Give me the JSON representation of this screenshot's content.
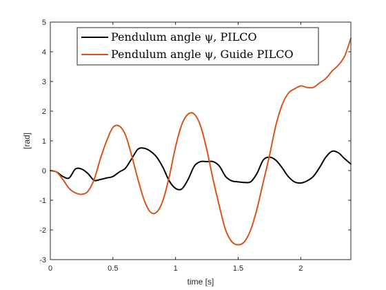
{
  "chart_data": {
    "type": "line",
    "title": "",
    "xlabel": "time [s]",
    "ylabel": "[rad]",
    "xlim": [
      0,
      2.4
    ],
    "ylim": [
      -3,
      5
    ],
    "xticks": [
      0,
      0.5,
      1,
      1.5,
      2
    ],
    "xtick_labels": [
      "0",
      "0.5",
      "1",
      "1.5",
      "2"
    ],
    "yticks": [
      -3,
      -2,
      -1,
      0,
      1,
      2,
      3,
      4,
      5
    ],
    "ytick_labels": [
      "-3",
      "-2",
      "-1",
      "0",
      "1",
      "2",
      "3",
      "4",
      "5"
    ],
    "grid": false,
    "legend_position": "top",
    "series": [
      {
        "name": "Pendulum angle ψ, PILCO",
        "color": "#000000",
        "x": [
          0,
          0.05,
          0.1,
          0.15,
          0.2,
          0.25,
          0.3,
          0.35,
          0.4,
          0.45,
          0.5,
          0.55,
          0.6,
          0.65,
          0.7,
          0.75,
          0.8,
          0.85,
          0.9,
          0.95,
          1.0,
          1.05,
          1.1,
          1.15,
          1.2,
          1.25,
          1.3,
          1.35,
          1.4,
          1.45,
          1.5,
          1.55,
          1.6,
          1.65,
          1.7,
          1.75,
          1.8,
          1.85,
          1.9,
          1.95,
          2.0,
          2.05,
          2.1,
          2.15,
          2.2,
          2.25,
          2.3,
          2.35,
          2.4
        ],
        "y": [
          0,
          -0.05,
          -0.2,
          -0.25,
          0.05,
          0.05,
          -0.1,
          -0.33,
          -0.3,
          -0.25,
          -0.2,
          -0.05,
          0.08,
          0.4,
          0.72,
          0.75,
          0.65,
          0.45,
          0.1,
          -0.35,
          -0.6,
          -0.62,
          -0.3,
          0.15,
          0.3,
          0.3,
          0.3,
          0.15,
          -0.2,
          -0.35,
          -0.38,
          -0.4,
          -0.38,
          -0.1,
          0.35,
          0.45,
          0.35,
          0.1,
          -0.2,
          -0.38,
          -0.42,
          -0.35,
          -0.2,
          0.1,
          0.45,
          0.65,
          0.6,
          0.4,
          0.22
        ]
      },
      {
        "name": "Pendulum angle ψ, Guide PILCO",
        "color": "#D95319",
        "x": [
          0,
          0.05,
          0.1,
          0.15,
          0.2,
          0.25,
          0.3,
          0.35,
          0.4,
          0.45,
          0.5,
          0.55,
          0.6,
          0.65,
          0.7,
          0.75,
          0.8,
          0.85,
          0.9,
          0.95,
          1.0,
          1.05,
          1.1,
          1.15,
          1.2,
          1.25,
          1.3,
          1.35,
          1.4,
          1.45,
          1.5,
          1.55,
          1.6,
          1.65,
          1.7,
          1.75,
          1.8,
          1.85,
          1.9,
          1.95,
          2.0,
          2.05,
          2.1,
          2.15,
          2.2,
          2.25,
          2.3,
          2.35,
          2.4
        ],
        "y": [
          0,
          -0.05,
          -0.3,
          -0.6,
          -0.75,
          -0.8,
          -0.7,
          -0.3,
          0.4,
          1.0,
          1.45,
          1.5,
          1.2,
          0.5,
          -0.3,
          -1.0,
          -1.4,
          -1.4,
          -1.0,
          -0.2,
          0.8,
          1.55,
          1.9,
          1.9,
          1.5,
          0.7,
          -0.3,
          -1.2,
          -2.0,
          -2.4,
          -2.5,
          -2.4,
          -2.0,
          -1.3,
          -0.4,
          0.5,
          1.5,
          2.2,
          2.6,
          2.75,
          2.85,
          2.8,
          2.8,
          2.95,
          3.1,
          3.35,
          3.55,
          3.85,
          4.45
        ]
      }
    ]
  }
}
